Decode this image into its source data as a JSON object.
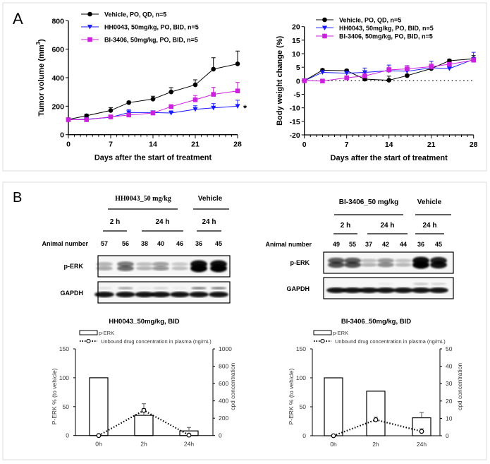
{
  "panel_a": {
    "label": "A"
  },
  "panel_b": {
    "label": "B",
    "blot_left": {
      "drug_header": "HH0043_50 mg/kg",
      "vehicle_header": "Vehicle",
      "time_2h": "2 h",
      "time_24h": "24 h",
      "vehicle_time": "24 h",
      "animal_label": "Animal number",
      "animals": [
        "57",
        "56",
        "38",
        "40",
        "46",
        "36",
        "45"
      ],
      "row1": "p-ERK",
      "row2": "GAPDH"
    },
    "blot_right": {
      "drug_header": "BI-3406_50 mg/kg",
      "vehicle_header": "Vehicle",
      "time_2h": "2 h",
      "time_24h": "24 h",
      "vehicle_time": "24 h",
      "animal_label": "Animal number",
      "animals": [
        "49",
        "55",
        "37",
        "42",
        "44",
        "36",
        "45"
      ],
      "row1": "p-ERK",
      "row2": "GAPDH"
    }
  },
  "chart_data": [
    {
      "type": "line",
      "xlabel": "Days after the start of treatment",
      "ylabel": "Tumor volume (mm",
      "ylabel_sup": "3",
      "ylabel_end": ")",
      "xlim": [
        0,
        28
      ],
      "ylim": [
        0,
        800
      ],
      "xticks": [
        0,
        7,
        14,
        21,
        28
      ],
      "yticks": [
        0,
        200,
        400,
        600,
        800
      ],
      "x": [
        0,
        3,
        7,
        10,
        14,
        17,
        21,
        24,
        28
      ],
      "legend": "top-left",
      "annotation": "*",
      "series": [
        {
          "name": "Vehicle, PO, QD, n=5",
          "color": "#000000",
          "marker": "circle",
          "values": [
            107,
            133,
            170,
            225,
            250,
            300,
            350,
            460,
            497
          ],
          "error": [
            5,
            10,
            20,
            10,
            20,
            30,
            35,
            80,
            90
          ]
        },
        {
          "name": "HH0043, 50mg/kg, PO, BID, n=5",
          "color": "#1a1aff",
          "marker": "triangle-down",
          "values": [
            105,
            108,
            122,
            155,
            155,
            152,
            178,
            188,
            200
          ],
          "error": [
            5,
            5,
            10,
            20,
            10,
            15,
            25,
            30,
            42
          ]
        },
        {
          "name": "BI-3406, 50mg/kg, PO, BID, n=5",
          "color": "#cc22dd",
          "marker": "square",
          "values": [
            105,
            105,
            125,
            138,
            152,
            197,
            245,
            283,
            307
          ],
          "error": [
            5,
            5,
            5,
            10,
            10,
            12,
            30,
            50,
            60
          ]
        }
      ]
    },
    {
      "type": "line",
      "xlabel": "Days after the start of treatment",
      "ylabel": "Body weight change (%)",
      "xlim": [
        0,
        28
      ],
      "ylim": [
        -20,
        20
      ],
      "xticks": [
        0,
        7,
        14,
        21,
        28
      ],
      "yticks": [
        -20,
        -15,
        -10,
        -5,
        0,
        5,
        10,
        15,
        20
      ],
      "x": [
        0,
        3,
        7,
        10,
        14,
        17,
        21,
        24,
        28
      ],
      "reference_line": 0,
      "legend": "top-left",
      "series": [
        {
          "name": "Vehicle, PO, QD, n=5",
          "color": "#000000",
          "marker": "circle",
          "values": [
            0,
            3.9,
            3.7,
            0.6,
            0.2,
            1.9,
            4.5,
            7.4,
            8.1
          ],
          "error": [
            0.3,
            0.5,
            0.5,
            0.5,
            1.5,
            0.5,
            0.5,
            0.5,
            1.2
          ]
        },
        {
          "name": "HH0043, 50mg/kg, PO, BID, n=5",
          "color": "#1a1aff",
          "marker": "triangle-down",
          "values": [
            0,
            3.1,
            2.8,
            3.1,
            3.7,
            3.5,
            4.8,
            4.5,
            7.9
          ],
          "error": [
            0.3,
            0.5,
            0.5,
            1.6,
            2.1,
            2.1,
            2.4,
            0.5,
            2.6
          ]
        },
        {
          "name": "BI-3406, 50mg/kg, PO, BID, n=5",
          "color": "#cc22dd",
          "marker": "square",
          "values": [
            0,
            -0.1,
            1.1,
            1.8,
            4.0,
            4.4,
            5.2,
            6.1,
            7.6
          ],
          "error": [
            0.2,
            0.2,
            0.5,
            0.8,
            1.0,
            1.2,
            1.0,
            0.5,
            0.8
          ]
        }
      ]
    },
    {
      "type": "bar",
      "title": "HH0043_50mg/kg, BID",
      "categories": [
        "0h",
        "2h",
        "24h"
      ],
      "ylabel": "P-ERK % (to vehicle)",
      "y2label": "cpd concentration",
      "ylim": [
        0,
        150
      ],
      "yticks": [
        0,
        50,
        100,
        150
      ],
      "y2lim": [
        0,
        1000
      ],
      "y2ticks": [
        0,
        200,
        400,
        600,
        800,
        1000
      ],
      "legend": "top",
      "series": [
        {
          "name": "p-ERK",
          "type": "bar",
          "axis": "left",
          "values": [
            100,
            35,
            8
          ],
          "error": [
            0,
            20,
            6
          ]
        },
        {
          "name": "Unbound drug concentration in plasma (ng/mL)",
          "type": "line-dotted",
          "axis": "right",
          "values": [
            0,
            290,
            5
          ],
          "error": [
            0,
            20,
            5
          ]
        }
      ]
    },
    {
      "type": "bar",
      "title": "BI-3406_50mg/kg, BID",
      "categories": [
        "0h",
        "2h",
        "24h"
      ],
      "ylabel": "P-ERK % (to vehicle)",
      "y2label": "cpd concentration",
      "ylim": [
        0,
        150
      ],
      "yticks": [
        0,
        50,
        100,
        150
      ],
      "y2lim": [
        0,
        50
      ],
      "y2ticks": [
        0,
        10,
        20,
        30,
        40,
        50
      ],
      "legend": "top",
      "series": [
        {
          "name": "p-ERK",
          "type": "bar",
          "axis": "left",
          "values": [
            100,
            77,
            31
          ],
          "error": [
            0,
            0,
            9
          ]
        },
        {
          "name": "Unbound drug concentration in plasma (ng/mL)",
          "type": "line-dotted",
          "axis": "right",
          "values": [
            0,
            9.2,
            2.5
          ],
          "error": [
            0,
            1.5,
            1.5
          ]
        }
      ]
    }
  ]
}
